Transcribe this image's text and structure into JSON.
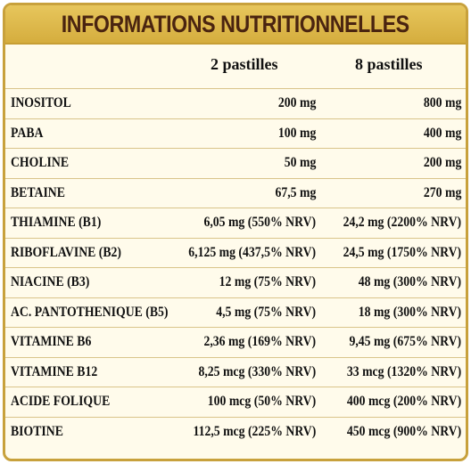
{
  "title": "INFORMATIONS NUTRITIONNELLES",
  "columns": [
    "2 pastilles",
    "8 pastilles"
  ],
  "rows": [
    {
      "name": "INOSITOL",
      "v1": "200 mg",
      "v2": "800 mg"
    },
    {
      "name": "PABA",
      "v1": "100 mg",
      "v2": "400 mg"
    },
    {
      "name": "CHOLINE",
      "v1": "50 mg",
      "v2": "200 mg"
    },
    {
      "name": "BETAINE",
      "v1": "67,5 mg",
      "v2": "270 mg"
    },
    {
      "name": "THIAMINE (B1)",
      "v1": "6,05 mg (550% NRV)",
      "v2": "24,2 mg (2200% NRV)"
    },
    {
      "name": "RIBOFLAVINE (B2)",
      "v1": "6,125 mg (437,5% NRV)",
      "v2": "24,5 mg (1750% NRV)"
    },
    {
      "name": "NIACINE (B3)",
      "v1": "12 mg (75% NRV)",
      "v2": "48 mg (300% NRV)"
    },
    {
      "name": "AC. PANTOTHENIQUE (B5)",
      "v1": "4,5 mg (75% NRV)",
      "v2": "18 mg (300% NRV)"
    },
    {
      "name": "VITAMINE B6",
      "v1": "2,36 mg (169% NRV)",
      "v2": "9,45 mg (675% NRV)"
    },
    {
      "name": "VITAMINE B12",
      "v1": "8,25 mcg (330% NRV)",
      "v2": "33 mcg (1320% NRV)"
    },
    {
      "name": "ACIDE FOLIQUE",
      "v1": "100 mcg (50% NRV)",
      "v2": "400 mcg (200% NRV)"
    },
    {
      "name": "BIOTINE",
      "v1": "112,5 mcg (225% NRV)",
      "v2": "450 mcg (900% NRV)"
    }
  ],
  "colors": {
    "gold": "#d5ad3e",
    "title_text": "#4a2410",
    "background": "#fffbeb"
  }
}
